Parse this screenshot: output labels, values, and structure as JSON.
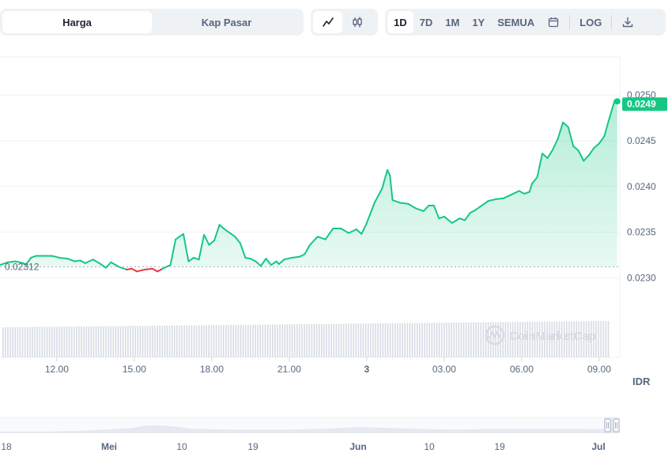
{
  "tabs": {
    "price_label": "Harga",
    "mcap_label": "Kap Pasar",
    "active": "price"
  },
  "chart_type_toggle": {
    "active": "line",
    "line_icon": "line-chart-icon",
    "candle_icon": "candlestick-icon"
  },
  "range": {
    "items": [
      "1D",
      "7D",
      "1M",
      "1Y",
      "SEMUA"
    ],
    "active": "1D",
    "calendar_icon": "calendar-icon",
    "log_label": "LOG",
    "download_icon": "download-icon"
  },
  "colors": {
    "up": "#16c784",
    "down": "#ea3943",
    "grid": "#eff2f5",
    "volume": "#d6dbe3"
  },
  "chart_data": {
    "type": "line",
    "currency_label": "IDR",
    "ylim": [
      0.02245,
      0.02552
    ],
    "y_ticks": [
      {
        "value": 0.023,
        "label": "0.0230"
      },
      {
        "value": 0.0235,
        "label": "0.0235"
      },
      {
        "value": 0.024,
        "label": "0.0240"
      },
      {
        "value": 0.0245,
        "label": "0.0245"
      },
      {
        "value": 0.025,
        "label": "0.0250"
      }
    ],
    "x_range_hours": [
      9.8,
      33.8
    ],
    "x_ticks": [
      {
        "hour": 12,
        "label": "12.00",
        "bold": false
      },
      {
        "hour": 15,
        "label": "15.00",
        "bold": false
      },
      {
        "hour": 18,
        "label": "18.00",
        "bold": false
      },
      {
        "hour": 21,
        "label": "21.00",
        "bold": false
      },
      {
        "hour": 24,
        "label": "3",
        "bold": true
      },
      {
        "hour": 27,
        "label": "03.00",
        "bold": false
      },
      {
        "hour": 30,
        "label": "06.00",
        "bold": false
      },
      {
        "hour": 33,
        "label": "09.00",
        "bold": false
      }
    ],
    "open_price": 0.02312,
    "open_label": "0.02312",
    "last_price": 0.0249,
    "last_label": "0.0249",
    "price": {
      "hours": [
        9.8,
        10.1,
        10.4,
        10.7,
        10.8,
        11.0,
        11.2,
        11.5,
        11.8,
        12.1,
        12.4,
        12.7,
        12.9,
        13.1,
        13.4,
        13.7,
        13.9,
        14.1,
        14.4,
        14.7,
        14.9,
        15.1,
        15.4,
        15.7,
        15.9,
        16.1,
        16.4,
        16.6,
        16.9,
        17.1,
        17.3,
        17.5,
        17.7,
        17.9,
        18.1,
        18.3,
        18.5,
        18.7,
        18.9,
        19.1,
        19.3,
        19.5,
        19.7,
        19.9,
        20.1,
        20.3,
        20.5,
        20.6,
        20.8,
        21.1,
        21.4,
        21.6,
        21.8,
        22.1,
        22.4,
        22.7,
        23.0,
        23.3,
        23.6,
        23.8,
        24.0,
        24.3,
        24.6,
        24.8,
        24.9,
        25.0,
        25.3,
        25.6,
        25.9,
        26.2,
        26.4,
        26.6,
        26.8,
        27.0,
        27.3,
        27.6,
        27.8,
        28.0,
        28.2,
        28.4,
        28.7,
        29.0,
        29.3,
        29.6,
        29.9,
        30.1,
        30.3,
        30.4,
        30.6,
        30.8,
        31.0,
        31.2,
        31.4,
        31.6,
        31.8,
        32.0,
        32.2,
        32.4,
        32.6,
        32.8,
        33.0,
        33.2,
        33.4,
        33.6,
        33.7
      ],
      "values": [
        0.02314,
        0.02317,
        0.02318,
        0.02316,
        0.02314,
        0.02322,
        0.02324,
        0.02324,
        0.02324,
        0.02322,
        0.02321,
        0.02318,
        0.02319,
        0.02316,
        0.0232,
        0.02315,
        0.02311,
        0.02317,
        0.02312,
        0.02309,
        0.0231,
        0.02307,
        0.02309,
        0.0231,
        0.02307,
        0.0231,
        0.02314,
        0.02342,
        0.02348,
        0.02318,
        0.02322,
        0.0232,
        0.02347,
        0.02336,
        0.02341,
        0.02358,
        0.02353,
        0.02349,
        0.02345,
        0.02338,
        0.02322,
        0.02321,
        0.02318,
        0.02313,
        0.02321,
        0.02314,
        0.02318,
        0.02315,
        0.0232,
        0.02322,
        0.02323,
        0.02326,
        0.02336,
        0.02345,
        0.02342,
        0.02354,
        0.02354,
        0.02349,
        0.02353,
        0.02348,
        0.0236,
        0.02382,
        0.02398,
        0.02418,
        0.02412,
        0.02385,
        0.02382,
        0.02381,
        0.02376,
        0.02373,
        0.02379,
        0.02379,
        0.02365,
        0.02367,
        0.0236,
        0.02365,
        0.02363,
        0.02371,
        0.02374,
        0.02378,
        0.02384,
        0.02386,
        0.02387,
        0.02391,
        0.02395,
        0.02392,
        0.02394,
        0.02403,
        0.0241,
        0.02436,
        0.02431,
        0.0244,
        0.02452,
        0.0247,
        0.02465,
        0.02444,
        0.02439,
        0.02428,
        0.02434,
        0.02442,
        0.02447,
        0.02455,
        0.02475,
        0.02494,
        0.02493
      ]
    },
    "volume_note": "uniform grey volume bars along the bottom",
    "navigator": {
      "labels": [
        {
          "label": "18",
          "bold": false
        },
        {
          "label": "Mei",
          "bold": true
        },
        {
          "label": "10",
          "bold": false
        },
        {
          "label": "19",
          "bold": false
        },
        {
          "label": "Jun",
          "bold": true
        },
        {
          "label": "10",
          "bold": false
        },
        {
          "label": "19",
          "bold": false
        },
        {
          "label": "Jul",
          "bold": true
        }
      ]
    },
    "watermark": "CoinMarketCap"
  }
}
